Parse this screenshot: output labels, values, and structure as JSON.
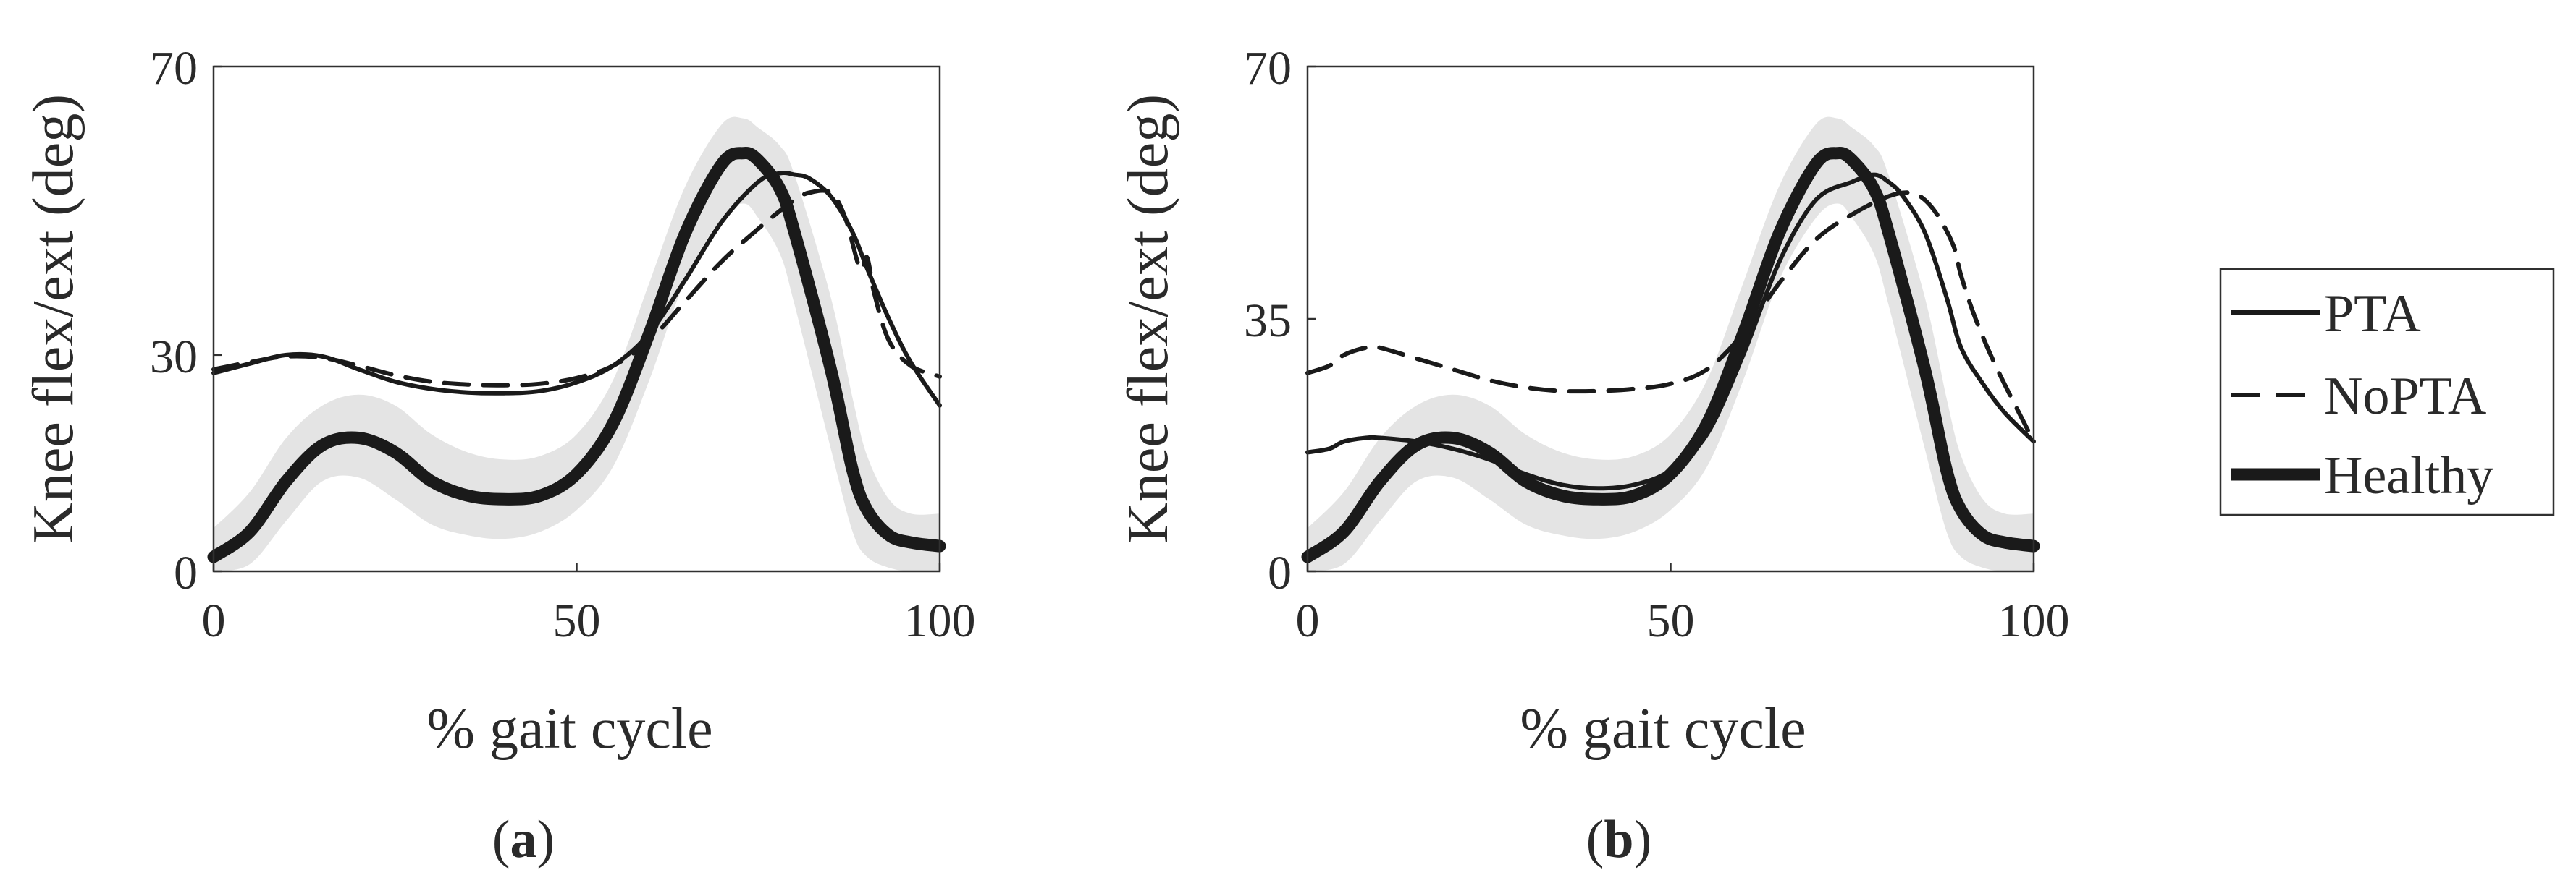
{
  "chart_data": [
    {
      "type": "line",
      "panel": "a",
      "caption": "a",
      "xlabel": "% gait cycle",
      "ylabel": "Knee flex/ext (deg)",
      "xlim": [
        0,
        100
      ],
      "ylim": [
        0,
        70
      ],
      "xticks": [
        0,
        50,
        100
      ],
      "yticks": [
        0,
        30,
        70
      ],
      "grid": false,
      "series": [
        {
          "name": "PTA",
          "style": "solid-thin",
          "x": [
            0,
            5,
            10,
            15,
            20,
            25,
            30,
            35,
            40,
            45,
            50,
            55,
            60,
            65,
            70,
            75,
            78,
            80,
            82,
            85,
            88,
            90,
            93,
            96,
            100
          ],
          "y": [
            27.5,
            28.8,
            30.0,
            29.8,
            28.0,
            26.3,
            25.3,
            24.8,
            24.7,
            25.0,
            26.2,
            28.5,
            33.0,
            40.5,
            48.5,
            54.0,
            55.2,
            55.0,
            54.5,
            52.0,
            47.0,
            42.0,
            35.0,
            29.0,
            23.0
          ]
        },
        {
          "name": "NoPTA",
          "style": "dashed",
          "x": [
            0,
            5,
            10,
            15,
            20,
            25,
            30,
            35,
            40,
            45,
            50,
            55,
            60,
            65,
            70,
            75,
            78,
            80,
            82,
            85,
            87,
            89,
            90,
            91,
            93,
            96,
            100
          ],
          "y": [
            28.0,
            29.0,
            29.8,
            29.6,
            28.5,
            27.2,
            26.3,
            25.9,
            25.8,
            26.0,
            26.8,
            28.5,
            32.0,
            37.5,
            43.0,
            47.5,
            50.0,
            51.5,
            52.5,
            52.5,
            49.0,
            42.0,
            43.5,
            38.5,
            32.0,
            28.5,
            27.0
          ]
        },
        {
          "name": "Healthy",
          "style": "solid-thick",
          "x": [
            0,
            5,
            10,
            15,
            20,
            25,
            30,
            35,
            40,
            45,
            50,
            55,
            60,
            65,
            70,
            73,
            75,
            78,
            80,
            85,
            88,
            90,
            93,
            96,
            100
          ],
          "y": [
            2.0,
            5.5,
            12.5,
            17.5,
            18.5,
            16.5,
            12.5,
            10.5,
            10.0,
            10.5,
            13.5,
            20.5,
            33.0,
            47.0,
            56.5,
            58.0,
            57.0,
            53.0,
            47.0,
            28.0,
            14.0,
            8.5,
            5.0,
            4.0,
            3.5
          ]
        }
      ],
      "healthy_band": {
        "x": [
          0,
          5,
          10,
          15,
          20,
          25,
          30,
          35,
          40,
          45,
          50,
          55,
          60,
          65,
          70,
          73,
          75,
          78,
          80,
          85,
          88,
          90,
          93,
          96,
          100
        ],
        "upper": [
          6.0,
          11.0,
          18.5,
          23.0,
          24.5,
          23.0,
          19.0,
          16.5,
          15.5,
          16.0,
          19.0,
          26.5,
          40.0,
          53.5,
          62.0,
          62.8,
          61.5,
          59.0,
          55.0,
          38.0,
          24.0,
          16.0,
          10.0,
          8.0,
          8.0
        ],
        "lower": [
          0.0,
          1.0,
          7.0,
          12.5,
          13.0,
          10.0,
          6.5,
          5.0,
          4.5,
          5.5,
          8.5,
          14.5,
          26.5,
          40.5,
          49.0,
          51.0,
          49.0,
          44.0,
          37.0,
          17.0,
          5.5,
          2.0,
          0.5,
          0.0,
          0.0
        ]
      }
    },
    {
      "type": "line",
      "panel": "b",
      "caption": "b",
      "xlabel": "% gait cycle",
      "ylabel": "Knee flex/ext (deg)",
      "xlim": [
        0,
        100
      ],
      "ylim": [
        0,
        70
      ],
      "xticks": [
        0,
        50,
        100
      ],
      "yticks": [
        0,
        35,
        70
      ],
      "grid": false,
      "series": [
        {
          "name": "PTA",
          "style": "solid-thin",
          "x": [
            0,
            3,
            5,
            8,
            10,
            15,
            20,
            25,
            30,
            35,
            40,
            45,
            50,
            55,
            60,
            65,
            70,
            75,
            78,
            80,
            82,
            85,
            88,
            90,
            93,
            96,
            100
          ],
          "y": [
            16.5,
            17.0,
            18.0,
            18.5,
            18.5,
            18.0,
            17.0,
            15.5,
            13.5,
            12.0,
            11.5,
            12.0,
            14.0,
            19.0,
            30.0,
            43.0,
            51.5,
            54.0,
            55.0,
            54.0,
            52.0,
            47.0,
            38.0,
            31.0,
            26.0,
            22.0,
            18.0
          ]
        },
        {
          "name": "NoPTA",
          "style": "dashed",
          "x": [
            0,
            3,
            5,
            8,
            10,
            15,
            20,
            25,
            30,
            35,
            40,
            45,
            50,
            55,
            60,
            65,
            70,
            75,
            80,
            83,
            85,
            87,
            89,
            90,
            92,
            95,
            100
          ],
          "y": [
            27.5,
            28.5,
            30.0,
            31.0,
            31.0,
            29.5,
            28.0,
            26.5,
            25.5,
            25.0,
            25.0,
            25.3,
            26.0,
            28.0,
            33.0,
            40.0,
            46.0,
            49.5,
            52.0,
            52.5,
            51.5,
            49.0,
            45.0,
            41.0,
            35.0,
            28.0,
            18.0
          ]
        },
        {
          "name": "Healthy",
          "style": "solid-thick",
          "x": [
            0,
            5,
            10,
            15,
            20,
            25,
            30,
            35,
            40,
            45,
            50,
            55,
            60,
            65,
            70,
            73,
            75,
            78,
            80,
            85,
            88,
            90,
            93,
            96,
            100
          ],
          "y": [
            2.0,
            5.5,
            12.5,
            17.5,
            18.5,
            16.5,
            12.5,
            10.5,
            10.0,
            10.5,
            13.5,
            20.5,
            33.0,
            47.0,
            56.5,
            58.0,
            57.0,
            53.0,
            47.0,
            28.0,
            14.0,
            8.5,
            5.0,
            4.0,
            3.5
          ]
        }
      ],
      "healthy_band": {
        "x": [
          0,
          5,
          10,
          15,
          20,
          25,
          30,
          35,
          40,
          45,
          50,
          55,
          60,
          65,
          70,
          73,
          75,
          78,
          80,
          85,
          88,
          90,
          93,
          96,
          100
        ],
        "upper": [
          6.0,
          11.0,
          18.5,
          23.0,
          24.5,
          23.0,
          19.0,
          16.5,
          15.5,
          16.0,
          19.0,
          26.5,
          40.0,
          53.5,
          62.0,
          62.8,
          61.5,
          59.0,
          55.0,
          38.0,
          24.0,
          16.0,
          10.0,
          8.0,
          8.0
        ],
        "lower": [
          0.0,
          1.0,
          7.0,
          12.5,
          13.0,
          10.0,
          6.5,
          5.0,
          4.5,
          5.5,
          8.5,
          14.5,
          26.5,
          40.5,
          49.0,
          51.0,
          49.0,
          44.0,
          37.0,
          17.0,
          5.5,
          2.0,
          0.5,
          0.0,
          0.0
        ]
      }
    }
  ],
  "legend": {
    "placement": "right",
    "entries": [
      {
        "label": "PTA",
        "style": "solid-thin"
      },
      {
        "label": "NoPTA",
        "style": "dashed"
      },
      {
        "label": "Healthy",
        "style": "solid-thick"
      }
    ]
  }
}
